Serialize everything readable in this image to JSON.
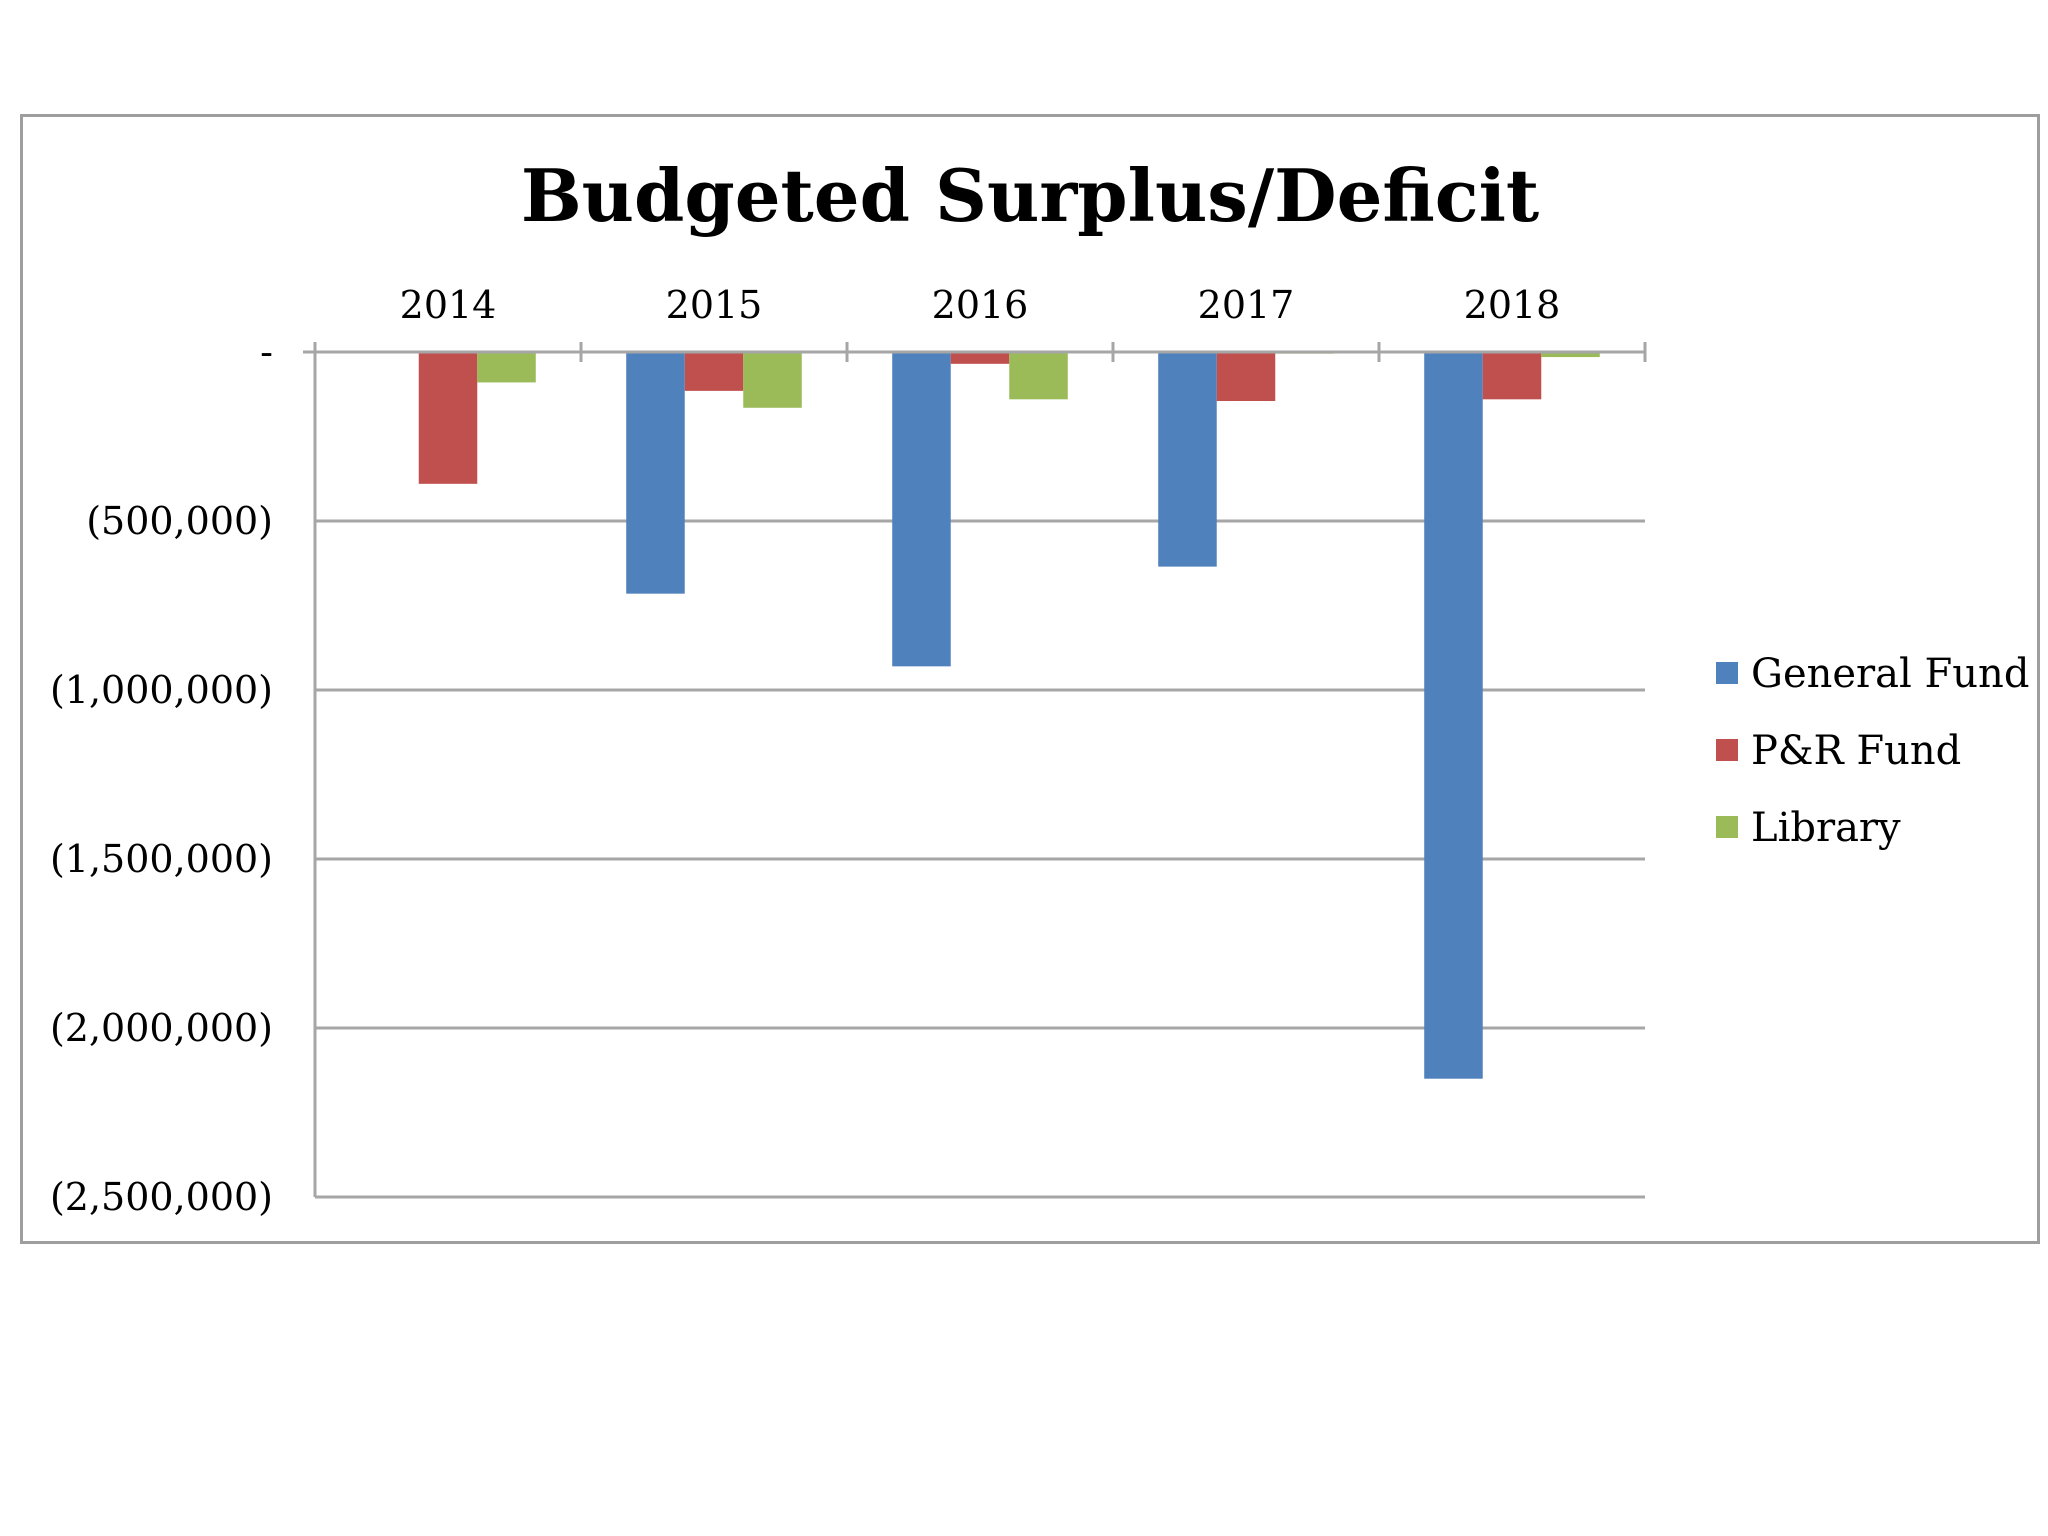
{
  "chart_data": {
    "type": "bar",
    "title": "Budgeted Surplus/Deficit",
    "xlabel": "",
    "ylabel": "",
    "categories": [
      "2014",
      "2015",
      "2016",
      "2017",
      "2018"
    ],
    "x_axis_position": "top",
    "ylim": [
      -2500000,
      0
    ],
    "y_ticks": [
      0,
      -500000,
      -1000000,
      -1500000,
      -2000000,
      -2500000
    ],
    "y_tick_labels": [
      "-",
      "(500,000)",
      "(1,000,000)",
      "(1,500,000)",
      "(2,000,000)",
      "(2,500,000)"
    ],
    "grid": true,
    "legend_position": "right",
    "series": [
      {
        "name": "General Fund",
        "color": "#4f81bd",
        "values": [
          0,
          -715000,
          -930000,
          -635000,
          -2150000
        ]
      },
      {
        "name": "P&R Fund",
        "color": "#c0504d",
        "values": [
          -390000,
          -115000,
          -35000,
          -145000,
          -140000
        ]
      },
      {
        "name": "Library",
        "color": "#9bbb59",
        "values": [
          -90000,
          -165000,
          -140000,
          -5000,
          -15000
        ]
      }
    ]
  }
}
